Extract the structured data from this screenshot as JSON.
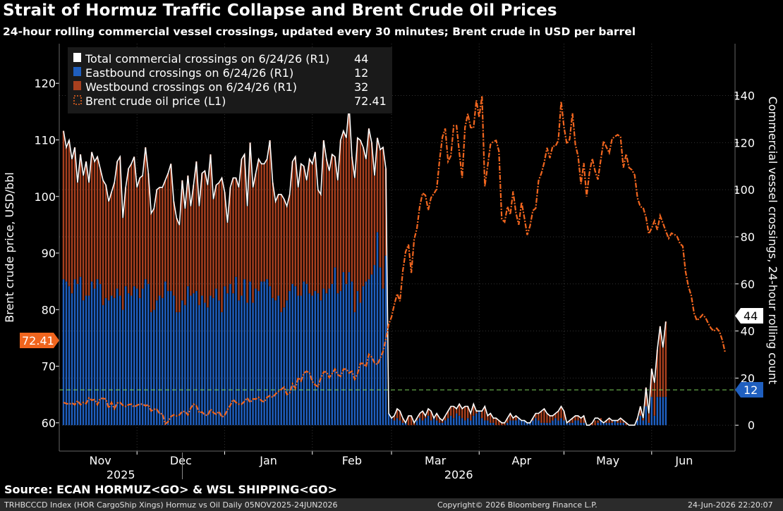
{
  "title": "Strait of Hormuz Traffic Collapse and Brent Crude Oil Prices",
  "subtitle": "24-hour rolling commercial vessel crossings, updated every 30 minutes; Brent crude in USD per barrel",
  "source": "Source: ECAN HORMUZ<GO> & WSL SHIPPING<GO>",
  "footer": {
    "left": "TRHBCCCD Index (HOR CargoShip Xings) Hormuz vs Oil Daily 05NOV2025-24JUN2026",
    "center": "Copyright© 2026 Bloomberg Finance L.P.",
    "right": "24-Jun-2026 22:20:07"
  },
  "colors": {
    "background": "#000000",
    "eastbound": "#1f5fbf",
    "westbound": "#a8401f",
    "total": "#ffffff",
    "brent": "#f0651e",
    "reference_line": "#7ccf5a"
  },
  "chart_data": {
    "type": "bar",
    "stacked": true,
    "grid": true,
    "legend_placement": "top-left",
    "ylabel_left": "Brent crude price, USD/bbl",
    "ylabel_right": "Commercial vessel crossings, 24-hour rolling count",
    "y_left_range": [
      55,
      127
    ],
    "y_left_ticks": [
      "60",
      "70",
      "80",
      "90",
      "100",
      "110",
      "120"
    ],
    "y_right_range": [
      -11,
      162
    ],
    "y_right_ticks": [
      "0",
      "20",
      "40",
      "60",
      "80",
      "100",
      "120",
      "140"
    ],
    "month_labels": [
      "Nov",
      "Dec",
      "Jan",
      "Feb",
      "Mar",
      "Apr",
      "May",
      "Jun"
    ],
    "year_labels": [
      "2025",
      "2026"
    ],
    "x_start": "2025-11-05",
    "x_end": "2026-06-24",
    "legend": [
      {
        "label": "Total commercial crossings on 6/24/26 (R1)",
        "value": "44",
        "swatch": "total"
      },
      {
        "label": "Eastbound crossings on 6/24/26 (R1)",
        "value": "12",
        "swatch": "eastbound"
      },
      {
        "label": "Westbound crossings on 6/24/26 (R1)",
        "value": "32",
        "swatch": "westbound"
      },
      {
        "label": "Brent crude oil price (L1)",
        "value": "72.41",
        "swatch": "brent"
      }
    ],
    "last_values": {
      "total": "44",
      "eastbound": "12",
      "brent": "72.41"
    },
    "reference_line_right_axis": 15,
    "series": [
      {
        "name": "Eastbound crossings",
        "axis": "right",
        "start": "2025-11-05",
        "values": [
          62,
          61,
          59,
          56,
          62,
          60,
          63,
          53,
          55,
          55,
          61,
          58,
          62,
          60,
          51,
          54,
          53,
          55,
          54,
          58,
          55,
          49,
          59,
          56,
          55,
          59,
          58,
          54,
          58,
          62,
          60,
          48,
          49,
          53,
          55,
          54,
          61,
          57,
          57,
          55,
          48,
          48,
          53,
          51,
          59,
          55,
          56,
          57,
          51,
          55,
          52,
          50,
          55,
          54,
          58,
          53,
          48,
          59,
          56,
          60,
          56,
          63,
          53,
          55,
          62,
          52,
          61,
          52,
          58,
          57,
          61,
          61,
          62,
          59,
          54,
          53,
          55,
          48,
          50,
          53,
          57,
          60,
          59,
          55,
          55,
          61,
          60,
          56,
          55,
          57,
          56,
          53,
          58,
          56,
          58,
          60,
          67,
          56,
          57,
          65,
          60,
          65,
          61,
          48,
          57,
          52,
          59,
          61,
          62,
          64,
          68,
          82,
          67,
          58,
          72,
          5,
          3,
          2,
          3,
          2,
          1,
          1,
          0,
          0,
          0,
          2,
          3,
          2,
          3,
          4,
          2,
          3,
          2,
          1,
          1,
          2,
          3,
          4,
          3,
          5,
          4,
          3,
          2,
          3,
          2,
          4,
          5,
          6,
          3,
          2,
          2,
          1,
          1,
          0,
          0,
          0,
          0,
          1,
          2,
          2,
          2,
          3,
          2,
          2,
          1,
          1,
          2,
          3,
          2,
          1,
          1,
          1,
          1,
          2,
          3,
          2,
          3,
          2,
          1,
          1,
          1,
          2,
          2,
          1,
          1,
          0,
          0,
          0,
          0,
          1,
          2,
          1,
          1,
          1,
          1,
          2,
          1,
          1,
          1,
          0,
          0,
          0,
          0,
          2,
          4,
          2,
          8,
          1,
          12,
          4,
          12,
          12,
          12,
          12
        ]
      },
      {
        "name": "Westbound crossings",
        "axis": "right",
        "start": "2025-11-05",
        "values": [
          63,
          57,
          62,
          57,
          56,
          43,
          52,
          53,
          57,
          48,
          55,
          54,
          52,
          49,
          53,
          48,
          42,
          44,
          49,
          54,
          59,
          39,
          42,
          53,
          56,
          55,
          43,
          51,
          48,
          56,
          47,
          42,
          43,
          47,
          46,
          47,
          43,
          50,
          54,
          40,
          40,
          37,
          51,
          41,
          47,
          38,
          46,
          55,
          42,
          52,
          56,
          52,
          60,
          42,
          44,
          50,
          57,
          40,
          30,
          41,
          49,
          42,
          48,
          58,
          53,
          41,
          59,
          49,
          49,
          56,
          50,
          50,
          51,
          62,
          49,
          42,
          43,
          50,
          46,
          40,
          41,
          52,
          55,
          46,
          56,
          49,
          44,
          57,
          56,
          59,
          44,
          45,
          63,
          57,
          50,
          55,
          47,
          48,
          64,
          60,
          62,
          71,
          53,
          57,
          65,
          69,
          59,
          52,
          64,
          56,
          38,
          40,
          50,
          60,
          37,
          0,
          0,
          2,
          4,
          4,
          2,
          0,
          4,
          4,
          1,
          1,
          2,
          4,
          1,
          3,
          4,
          0,
          3,
          2,
          1,
          2,
          3,
          4,
          5,
          2,
          5,
          4,
          6,
          5,
          3,
          5,
          1,
          0,
          3,
          6,
          2,
          4,
          2,
          3,
          2,
          1,
          1,
          2,
          3,
          1,
          2,
          0,
          0,
          0,
          0,
          0,
          1,
          2,
          3,
          5,
          6,
          4,
          3,
          2,
          2,
          4,
          5,
          4,
          0,
          1,
          2,
          2,
          2,
          2,
          3,
          0,
          0,
          1,
          2,
          1,
          1,
          0,
          1,
          2,
          1,
          0,
          1,
          2,
          1,
          1,
          0,
          0,
          0,
          1,
          4,
          1,
          8,
          4,
          12,
          14,
          20,
          30,
          21,
          32
        ]
      },
      {
        "name": "Total commercial crossings",
        "axis": "right",
        "start": "2025-11-05",
        "values": [
          125,
          118,
          121,
          113,
          118,
          103,
          115,
          106,
          112,
          103,
          116,
          112,
          114,
          109,
          104,
          102,
          95,
          99,
          103,
          112,
          114,
          88,
          101,
          109,
          111,
          114,
          101,
          105,
          106,
          118,
          107,
          90,
          92,
          100,
          101,
          101,
          104,
          107,
          111,
          95,
          88,
          85,
          104,
          92,
          106,
          93,
          102,
          112,
          93,
          107,
          108,
          102,
          115,
          96,
          102,
          103,
          105,
          99,
          86,
          101,
          105,
          105,
          101,
          113,
          115,
          93,
          120,
          101,
          107,
          113,
          111,
          111,
          113,
          121,
          103,
          95,
          98,
          98,
          96,
          93,
          98,
          112,
          114,
          101,
          111,
          110,
          104,
          113,
          111,
          116,
          100,
          98,
          121,
          113,
          108,
          115,
          114,
          104,
          121,
          125,
          122,
          136,
          114,
          105,
          122,
          121,
          118,
          113,
          126,
          120,
          106,
          122,
          117,
          118,
          109,
          5,
          3,
          4,
          7,
          6,
          3,
          1,
          4,
          4,
          1,
          3,
          5,
          6,
          4,
          7,
          6,
          3,
          5,
          3,
          2,
          4,
          6,
          8,
          8,
          7,
          9,
          7,
          8,
          8,
          5,
          9,
          6,
          6,
          6,
          8,
          4,
          5,
          3,
          3,
          2,
          1,
          1,
          3,
          5,
          3,
          4,
          3,
          2,
          2,
          1,
          1,
          3,
          5,
          5,
          6,
          7,
          5,
          4,
          4,
          5,
          6,
          8,
          6,
          1,
          2,
          3,
          4,
          4,
          3,
          4,
          0,
          0,
          1,
          3,
          3,
          2,
          1,
          2,
          3,
          2,
          2,
          2,
          3,
          2,
          1,
          0,
          0,
          0,
          3,
          8,
          3,
          16,
          5,
          24,
          18,
          32,
          42,
          33,
          44
        ]
      },
      {
        "name": "Brent crude oil price",
        "axis": "left",
        "start": "2025-11-05",
        "values": [
          63.6,
          63.4,
          63.3,
          63.5,
          63.2,
          63.9,
          63.2,
          63.6,
          63.4,
          64.4,
          64.0,
          64.1,
          63.2,
          64.3,
          64.3,
          64.2,
          62.6,
          63.6,
          62.5,
          63.5,
          63.6,
          63.1,
          62.9,
          63.2,
          63.3,
          62.8,
          63.1,
          63.3,
          63.3,
          63.0,
          63.2,
          62.1,
          62.4,
          62.4,
          61.6,
          61.6,
          59.8,
          60.2,
          61.1,
          61.4,
          61.2,
          61.4,
          62.0,
          62.0,
          61.4,
          62.6,
          63.3,
          63.0,
          61.8,
          61.9,
          61.4,
          61.3,
          62.4,
          61.8,
          61.5,
          62.0,
          61.0,
          61.3,
          62.3,
          63.1,
          64.1,
          63.6,
          63.3,
          63.3,
          63.8,
          64.4,
          63.6,
          64.2,
          64.2,
          64.5,
          63.9,
          63.7,
          64.5,
          64.8,
          64.5,
          65.1,
          65.5,
          65.9,
          66.3,
          65.0,
          65.3,
          66.9,
          66.1,
          68.0,
          67.4,
          68.8,
          69.1,
          68.8,
          67.3,
          66.7,
          66.4,
          67.9,
          69.0,
          69.0,
          68.0,
          68.7,
          69.5,
          68.5,
          68.2,
          69.5,
          69.5,
          68.8,
          69.1,
          67.7,
          68.7,
          70.5,
          70.5,
          69.9,
          72.1,
          71.6,
          70.6,
          70.3,
          71.4,
          72.6,
          74.8,
          77.4,
          78.7,
          80.9,
          82.8,
          81.5,
          86.8,
          90.2,
          91.5,
          86.5,
          92.4,
          94.4,
          98.3,
          100.6,
          100.2,
          97.6,
          99.8,
          100.5,
          101.3,
          106.5,
          110.5,
          112.0,
          106.2,
          107.2,
          112.5,
          112.5,
          107.7,
          103.3,
          112.2,
          114.6,
          112.2,
          112.1,
          117.0,
          114.0,
          117.8,
          101.8,
          105.4,
          109.2,
          109.7,
          109.9,
          108.0,
          96.0,
          95.5,
          98.2,
          96.8,
          100.9,
          97.1,
          95.0,
          99.0,
          96.2,
          93.2,
          94.8,
          97.5,
          97.9,
          102.8,
          104.1,
          106.0,
          108.6,
          106.8,
          108.9,
          108.9,
          109.9,
          116.8,
          112.3,
          109.3,
          110.1,
          114.7,
          109.2,
          107.1,
          102.2,
          105.9,
          100.0,
          104.2,
          106.7,
          104.5,
          103.0,
          106.4,
          109.8,
          108.7,
          107.7,
          110.2,
          110.6,
          110.9,
          110.5,
          105.1,
          107.5,
          105.1,
          104.7,
          103.8,
          99.7,
          98.2,
          98.0,
          96.3,
          93.4,
          94.4,
          95.7,
          94.1,
          96.6,
          95.3,
          93.9,
          92.6,
          93.5,
          93.3,
          92.9,
          91.7,
          91.2,
          86.7,
          84.1,
          82.5,
          79.4,
          78.1,
          78.5,
          79.1,
          78.6,
          77.6,
          76.7,
          76.2,
          76.7,
          76.1,
          74.6,
          72.41
        ]
      }
    ]
  }
}
